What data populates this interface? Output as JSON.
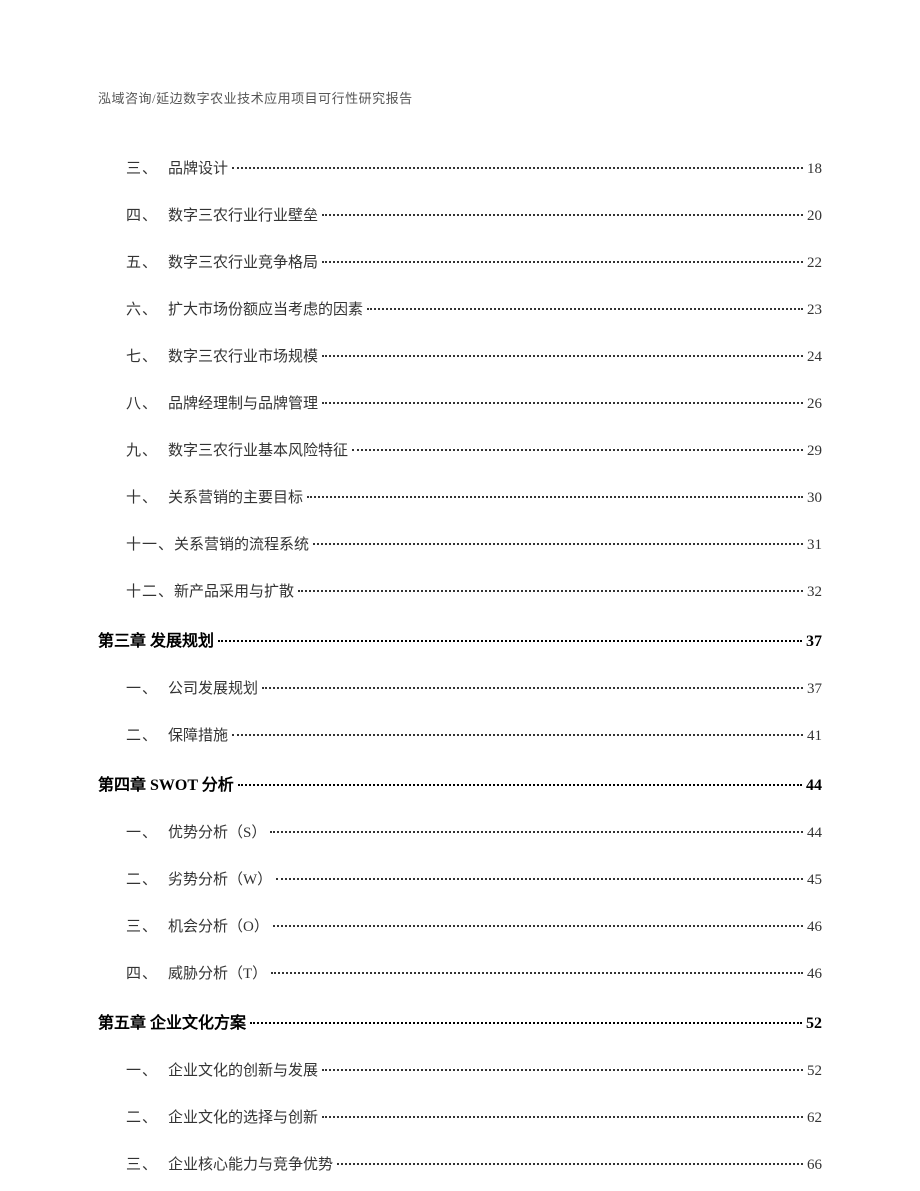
{
  "header": "泓域咨询/延边数字农业技术应用项目可行性研究报告",
  "items": [
    {
      "type": "sub",
      "num": "三、",
      "label": "品牌设计",
      "page": "18"
    },
    {
      "type": "sub",
      "num": "四、",
      "label": "数字三农行业行业壁垒",
      "page": "20"
    },
    {
      "type": "sub",
      "num": "五、",
      "label": "数字三农行业竞争格局",
      "page": "22"
    },
    {
      "type": "sub",
      "num": "六、",
      "label": "扩大市场份额应当考虑的因素",
      "page": "23"
    },
    {
      "type": "sub",
      "num": "七、",
      "label": "数字三农行业市场规模",
      "page": "24"
    },
    {
      "type": "sub",
      "num": "八、",
      "label": "品牌经理制与品牌管理",
      "page": "26"
    },
    {
      "type": "sub",
      "num": "九、",
      "label": "数字三农行业基本风险特征",
      "page": "29"
    },
    {
      "type": "sub",
      "num": "十、",
      "label": "关系营销的主要目标",
      "page": "30"
    },
    {
      "type": "sub",
      "num": "十一、",
      "label": "关系营销的流程系统",
      "page": "31"
    },
    {
      "type": "sub",
      "num": "十二、",
      "label": "新产品采用与扩散",
      "page": "32"
    },
    {
      "type": "chapter",
      "label": "第三章 发展规划 ",
      "page": "37"
    },
    {
      "type": "sub",
      "num": "一、",
      "label": "公司发展规划",
      "page": "37"
    },
    {
      "type": "sub",
      "num": "二、",
      "label": "保障措施",
      "page": "41"
    },
    {
      "type": "chapter",
      "label": "第四章 SWOT 分析 ",
      "page": "44"
    },
    {
      "type": "sub",
      "num": "一、",
      "label": "优势分析（S）",
      "page": "44"
    },
    {
      "type": "sub",
      "num": "二、",
      "label": "劣势分析（W）",
      "page": "45"
    },
    {
      "type": "sub",
      "num": "三、",
      "label": "机会分析（O）",
      "page": "46"
    },
    {
      "type": "sub",
      "num": "四、",
      "label": "威胁分析（T）",
      "page": "46"
    },
    {
      "type": "chapter",
      "label": "第五章 企业文化方案",
      "page": "52"
    },
    {
      "type": "sub",
      "num": "一、",
      "label": "企业文化的创新与发展",
      "page": "52"
    },
    {
      "type": "sub",
      "num": "二、",
      "label": "企业文化的选择与创新",
      "page": "62"
    },
    {
      "type": "sub",
      "num": "三、",
      "label": "企业核心能力与竞争优势",
      "page": "66"
    }
  ]
}
